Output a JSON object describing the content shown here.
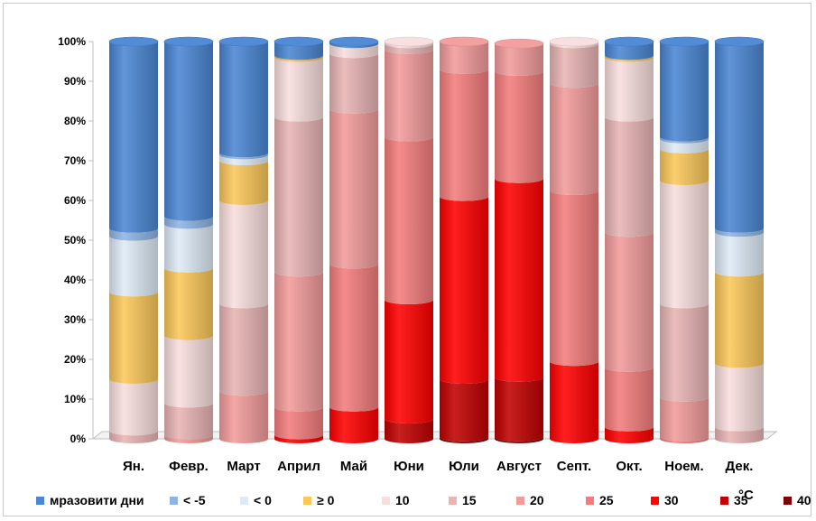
{
  "chart_data": {
    "type": "bar",
    "stacked": true,
    "percent": true,
    "categories": [
      "Ян.",
      "Февр.",
      "Март",
      "Април",
      "Май",
      "Юни",
      "Юли",
      "Август",
      "Септ.",
      "Окт.",
      "Ноем.",
      "Дек."
    ],
    "y_ticks": [
      "0%",
      "10%",
      "20%",
      "30%",
      "40%",
      "50%",
      "60%",
      "70%",
      "80%",
      "90%",
      "100%"
    ],
    "ylim": [
      0,
      100
    ],
    "grid": false,
    "legend_position": "bottom",
    "unit_label": "°C",
    "series": [
      {
        "name": "40",
        "color": "#7f0000",
        "values": [
          0,
          0,
          0,
          0,
          0,
          0,
          0.5,
          0.5,
          0,
          0,
          0,
          0
        ]
      },
      {
        "name": "35",
        "color": "#c00000",
        "values": [
          0,
          0,
          0,
          0,
          0,
          5,
          14.5,
          15,
          0,
          0,
          0,
          0
        ]
      },
      {
        "name": "30",
        "color": "#ff0000",
        "values": [
          0,
          0,
          0,
          1,
          8,
          30,
          46,
          50,
          19.5,
          3,
          0,
          0
        ]
      },
      {
        "name": "25",
        "color": "#f47c7c",
        "values": [
          0,
          0,
          0,
          7,
          36,
          41,
          32,
          27,
          43,
          15,
          0.5,
          0
        ]
      },
      {
        "name": "20",
        "color": "#f29b9b",
        "values": [
          0,
          1,
          12,
          34,
          39,
          22,
          7,
          7,
          27,
          34,
          10,
          0
        ]
      },
      {
        "name": "15",
        "color": "#e8b4b4",
        "values": [
          2,
          8,
          22,
          39,
          14,
          1.5,
          0,
          0,
          10,
          29,
          23.5,
          3
        ]
      },
      {
        "name": "10",
        "color": "#f9dede",
        "values": [
          13,
          17,
          26,
          15,
          2.5,
          0.5,
          0,
          0,
          0.5,
          15,
          31,
          16
        ]
      },
      {
        "name": "≥ 0",
        "color": "#fac75a",
        "values": [
          22,
          17,
          10,
          0.5,
          0,
          0,
          0,
          0,
          0,
          0.5,
          8,
          23
        ]
      },
      {
        "name": "< 0",
        "color": "#deeaf6",
        "values": [
          14,
          11,
          1.5,
          0,
          0,
          0,
          0,
          0,
          0,
          0,
          2.5,
          10
        ]
      },
      {
        "name": "< -5",
        "color": "#8eb4e3",
        "values": [
          2,
          2,
          0.5,
          0,
          0,
          0,
          0,
          0,
          0,
          0,
          0.5,
          1
        ]
      },
      {
        "name": "мразовити дни",
        "color": "#4a86d4",
        "values": [
          47,
          44,
          28,
          3.5,
          0.5,
          0,
          0,
          0,
          0,
          3.5,
          24,
          47
        ]
      }
    ],
    "legend": [
      "мразовити дни",
      "< -5",
      "< 0",
      "≥ 0",
      "10",
      "15",
      "20",
      "25",
      "30",
      "35",
      "40"
    ]
  }
}
